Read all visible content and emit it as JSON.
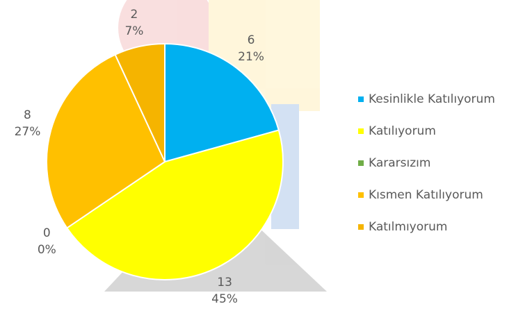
{
  "chart_data": {
    "type": "pie",
    "categories": [
      "Kesinlikle Katılıyorum",
      "Katılıyorum",
      "Kararsızım",
      "Kısmen Katılıyorum",
      "Katılmıyorum"
    ],
    "values": [
      6,
      13,
      0,
      8,
      2
    ],
    "percent_labels": [
      "21%",
      "45%",
      "0%",
      "27%",
      "7%"
    ],
    "colors": [
      "#00b0f0",
      "#ffff00",
      "#70ad47",
      "#ffc000",
      "#f5b400"
    ],
    "legend": "right"
  }
}
